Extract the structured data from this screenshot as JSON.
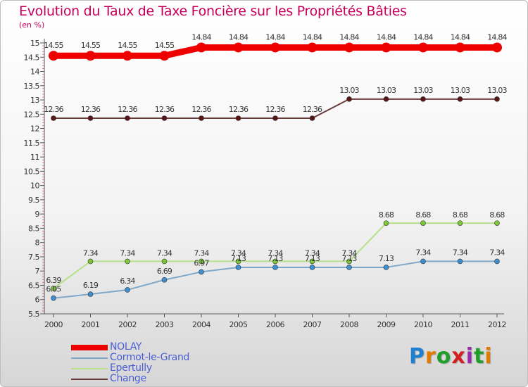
{
  "chart_data": {
    "type": "line",
    "title": "Evolution du Taux de Taxe Foncière sur les Propriétés Bâties",
    "ylabel": "(en %)",
    "xlabel": "",
    "x": [
      "2000",
      "2001",
      "2002",
      "2003",
      "2004",
      "2005",
      "2006",
      "2007",
      "2008",
      "2009",
      "2010",
      "2011",
      "2012"
    ],
    "ylim": [
      5.5,
      15
    ],
    "yticks": [
      "5.5",
      "6",
      "6.5",
      "7",
      "7.5",
      "8",
      "8.5",
      "9",
      "9.5",
      "10",
      "10.5",
      "11",
      "11.5",
      "12",
      "12.5",
      "13",
      "13.5",
      "14",
      "14.5",
      "15"
    ],
    "grid": false,
    "legend_position": "bottom-left",
    "series": [
      {
        "name": "NOLAY",
        "color": "#ee0000",
        "values": [
          14.55,
          14.55,
          14.55,
          14.55,
          14.84,
          14.84,
          14.84,
          14.84,
          14.84,
          14.84,
          14.84,
          14.84,
          14.84
        ],
        "labels": [
          "14.55",
          "14.55",
          "14.55",
          "14.55",
          "14.84",
          "14.84",
          "14.84",
          "14.84",
          "14.84",
          "14.84",
          "14.84",
          "14.84",
          "14.84"
        ]
      },
      {
        "name": "Cormot-le-Grand",
        "color": "#7fa7c8",
        "marker": "#3f8fd2",
        "values": [
          6.05,
          6.19,
          6.34,
          6.69,
          6.97,
          7.13,
          7.13,
          7.13,
          7.13,
          7.13,
          7.34,
          7.34,
          7.34
        ],
        "labels": [
          "6.05",
          "6.19",
          "6.34",
          "6.69",
          "6.97",
          "7.13",
          "7.13",
          "7.13",
          "7.13",
          "7.13",
          "7.34",
          "7.34",
          "7.34"
        ]
      },
      {
        "name": "Epertully",
        "color": "#b6e08a",
        "marker": "#7ec73a",
        "values": [
          6.39,
          7.34,
          7.34,
          7.34,
          7.34,
          7.34,
          7.34,
          7.34,
          7.34,
          8.68,
          8.68,
          8.68,
          8.68
        ],
        "labels": [
          "6.39",
          "7.34",
          "7.34",
          "7.34",
          "7.34",
          "7.34",
          "7.34",
          "7.34",
          "7.34",
          "8.68",
          "8.68",
          "8.68",
          "8.68"
        ]
      },
      {
        "name": "Change",
        "color": "#6b3a3a",
        "marker": "#5a1515",
        "values": [
          12.36,
          12.36,
          12.36,
          12.36,
          12.36,
          12.36,
          12.36,
          12.36,
          13.03,
          13.03,
          13.03,
          13.03,
          13.03
        ],
        "labels": [
          "12.36",
          "12.36",
          "12.36",
          "12.36",
          "12.36",
          "12.36",
          "12.36",
          "12.36",
          "13.03",
          "13.03",
          "13.03",
          "13.03",
          "13.03"
        ]
      }
    ]
  },
  "logo": {
    "text": "Proxiti"
  }
}
